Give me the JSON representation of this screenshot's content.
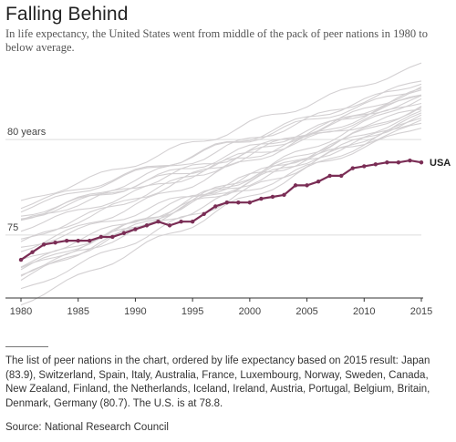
{
  "title": "Falling Behind",
  "subtitle": "In life expectancy, the United States went from middle of the pack of peer nations in 1980 to below average.",
  "note": "The list of peer nations in the chart, ordered by life expectancy based on 2015 result: Japan (83.9), Switzerland, Spain, Italy, Australia, France, Luxembourg, Norway, Sweden, Canada, New Zealand, Finland, the Netherlands, Iceland, Ireland, Austria, Portugal, Belgium, Britain, Denmark, Germany (80.7). The U.S. is at 78.8.",
  "source": "Source: National Research Council",
  "colors": {
    "usa": "#7a2d55",
    "peers": "#d3d0d2",
    "grid": "#dddddd",
    "axis": "#333333"
  },
  "chart_data": {
    "type": "line",
    "x": [
      1980,
      1981,
      1982,
      1983,
      1984,
      1985,
      1986,
      1987,
      1988,
      1989,
      1990,
      1991,
      1992,
      1993,
      1994,
      1995,
      1996,
      1997,
      1998,
      1999,
      2000,
      2001,
      2002,
      2003,
      2004,
      2005,
      2006,
      2007,
      2008,
      2009,
      2010,
      2011,
      2012,
      2013,
      2014,
      2015
    ],
    "xticks": [
      1980,
      1985,
      1990,
      1995,
      2000,
      2005,
      2010,
      2015
    ],
    "xtick_labels": [
      "1980",
      "1985",
      "1990",
      "1995",
      "2000",
      "2005",
      "2010",
      "2015"
    ],
    "yticks": [
      75,
      80
    ],
    "ytick_labels": [
      "75",
      "80 years"
    ],
    "xlim": [
      1980,
      2015
    ],
    "ylim": [
      71.7,
      84.3
    ],
    "grid": true,
    "highlight_label": "USA",
    "series": [
      {
        "name": "USA",
        "highlight": true,
        "values": [
          73.7,
          74.1,
          74.5,
          74.6,
          74.7,
          74.7,
          74.7,
          74.9,
          74.9,
          75.1,
          75.3,
          75.5,
          75.7,
          75.5,
          75.7,
          75.7,
          76.1,
          76.5,
          76.7,
          76.7,
          76.7,
          76.9,
          77.0,
          77.1,
          77.6,
          77.6,
          77.8,
          78.1,
          78.1,
          78.5,
          78.6,
          78.7,
          78.8,
          78.8,
          78.9,
          78.8
        ]
      },
      {
        "start": 76.7,
        "end": 83.9
      },
      {
        "start": 75.8,
        "end": 83.1
      },
      {
        "start": 76.3,
        "end": 83.0
      },
      {
        "start": 74.6,
        "end": 82.7
      },
      {
        "start": 74.7,
        "end": 82.6
      },
      {
        "start": 74.2,
        "end": 82.4
      },
      {
        "start": 72.7,
        "end": 82.2
      },
      {
        "start": 75.7,
        "end": 82.2
      },
      {
        "start": 75.8,
        "end": 82.3
      },
      {
        "start": 75.3,
        "end": 82.0
      },
      {
        "start": 73.2,
        "end": 81.7
      },
      {
        "start": 73.6,
        "end": 81.4
      },
      {
        "start": 76.0,
        "end": 81.6
      },
      {
        "start": 76.5,
        "end": 82.7
      },
      {
        "start": 72.8,
        "end": 81.7
      },
      {
        "start": 72.1,
        "end": 81.3
      },
      {
        "start": 71.4,
        "end": 81.2
      },
      {
        "start": 73.4,
        "end": 81.1
      },
      {
        "start": 73.2,
        "end": 81.2
      },
      {
        "start": 74.3,
        "end": 80.8
      },
      {
        "start": 73.0,
        "end": 80.7
      }
    ]
  }
}
